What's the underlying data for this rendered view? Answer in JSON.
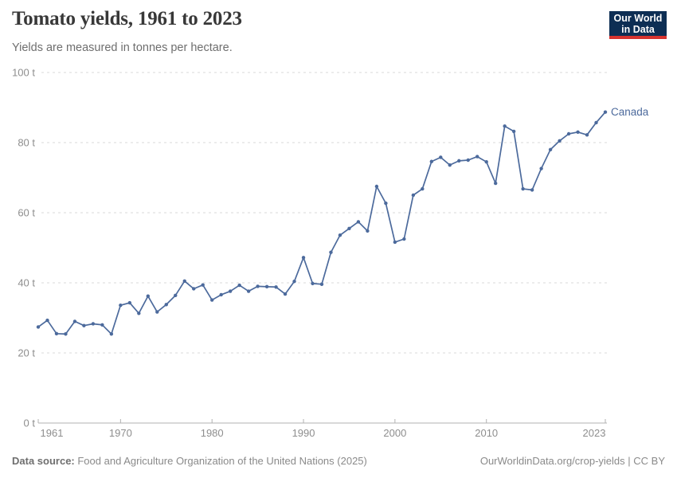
{
  "header": {
    "title": "Tomato yields, 1961 to 2023",
    "subtitle": "Yields are measured in tonnes per hectare."
  },
  "logo": {
    "line1": "Our World",
    "line2": "in Data",
    "bg_color": "#0d2e54",
    "bar_color": "#d7332f"
  },
  "chart_data": {
    "type": "line",
    "title": "Tomato yields, 1961 to 2023",
    "ylabel": "tonnes per hectare",
    "xlabel": "",
    "xlim": [
      1961,
      2023
    ],
    "ylim": [
      0,
      100
    ],
    "x_ticks": [
      1961,
      1970,
      1980,
      1990,
      2000,
      2010,
      2023
    ],
    "y_ticks": [
      0,
      20,
      40,
      60,
      80,
      100
    ],
    "y_tick_suffix": " t",
    "grid": "dashed-horizontal",
    "legend_position": "end-of-line-label",
    "series": [
      {
        "name": "Canada",
        "color": "#4C6A9C",
        "x": [
          1961,
          1962,
          1963,
          1964,
          1965,
          1966,
          1967,
          1968,
          1969,
          1970,
          1971,
          1972,
          1973,
          1974,
          1975,
          1976,
          1977,
          1978,
          1979,
          1980,
          1981,
          1982,
          1983,
          1984,
          1985,
          1986,
          1987,
          1988,
          1989,
          1990,
          1991,
          1992,
          1993,
          1994,
          1995,
          1996,
          1997,
          1998,
          1999,
          2000,
          2001,
          2002,
          2003,
          2004,
          2005,
          2006,
          2007,
          2008,
          2009,
          2010,
          2011,
          2012,
          2013,
          2014,
          2015,
          2016,
          2017,
          2018,
          2019,
          2020,
          2021,
          2022,
          2023
        ],
        "values": [
          27.4,
          29.3,
          25.5,
          25.4,
          29.0,
          27.8,
          28.3,
          28.0,
          25.4,
          33.6,
          34.3,
          31.3,
          36.2,
          31.7,
          33.8,
          36.4,
          40.5,
          38.3,
          39.4,
          35.1,
          36.6,
          37.6,
          39.3,
          37.6,
          39.0,
          38.9,
          38.8,
          36.8,
          40.4,
          47.2,
          39.8,
          39.6,
          48.7,
          53.6,
          55.5,
          57.4,
          54.8,
          67.5,
          62.7,
          51.6,
          52.5,
          65.0,
          66.8,
          74.6,
          75.8,
          73.6,
          74.8,
          75.0,
          76.0,
          74.5,
          68.4,
          84.7,
          83.2,
          66.8,
          66.5,
          72.6,
          78.0,
          80.5,
          82.5,
          83.0,
          82.2,
          85.7,
          88.7
        ]
      }
    ]
  },
  "footer": {
    "source_label": "Data source:",
    "source_text": " Food and Agriculture Organization of the United Nations (2025)",
    "right_text": "OurWorldinData.org/crop-yields | CC BY"
  }
}
